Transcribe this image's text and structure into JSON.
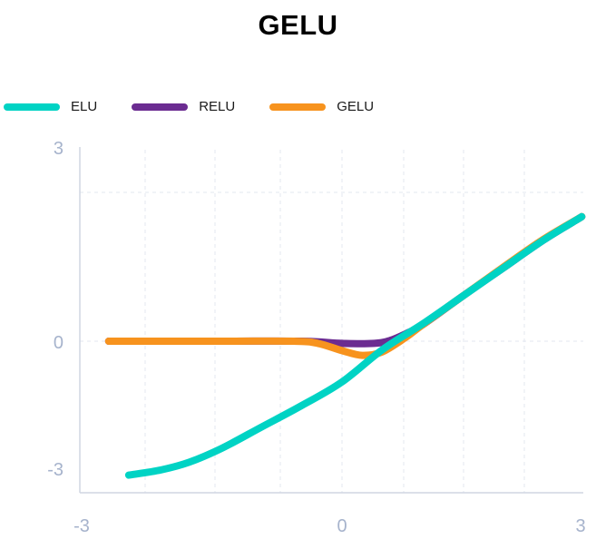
{
  "chart_data": {
    "type": "line",
    "title": "GELU",
    "xlabel": "",
    "ylabel": "",
    "xlim": [
      -3,
      3
    ],
    "ylim": [
      -3,
      3
    ],
    "x_ticks": [
      "-3",
      "0",
      "3"
    ],
    "y_ticks": [
      "3",
      "0",
      "-3"
    ],
    "grid": true,
    "legend_position": "top-left",
    "series": [
      {
        "name": "ELU",
        "color": "#00d3c4",
        "x": [
          -2.65,
          -2.25,
          -1.9,
          -1.5,
          -1.0,
          -0.5,
          0.0,
          0.5,
          1.0,
          1.5,
          2.0,
          2.5,
          2.98
        ],
        "y": [
          -3.12,
          -3.0,
          -2.82,
          -2.5,
          -2.0,
          -1.5,
          -0.95,
          -0.2,
          0.4,
          1.05,
          1.7,
          2.35,
          2.9
        ]
      },
      {
        "name": "RELU",
        "color": "#6b2c91",
        "x": [
          -2.9,
          -1.5,
          -0.5,
          0.0,
          0.4,
          0.6,
          0.8,
          1.0,
          1.5,
          2.0,
          2.5,
          2.98
        ],
        "y": [
          0.0,
          0.0,
          0.0,
          -0.05,
          -0.05,
          0.02,
          0.18,
          0.38,
          1.05,
          1.7,
          2.35,
          2.9
        ]
      },
      {
        "name": "GELU",
        "color": "#f7931e",
        "x": [
          -2.9,
          -1.5,
          -0.6,
          -0.3,
          0.0,
          0.25,
          0.5,
          0.8,
          1.0,
          1.5,
          2.0,
          2.5,
          2.98
        ],
        "y": [
          0.0,
          0.0,
          0.0,
          -0.05,
          -0.22,
          -0.33,
          -0.25,
          0.1,
          0.38,
          1.05,
          1.72,
          2.37,
          2.9
        ]
      }
    ]
  }
}
